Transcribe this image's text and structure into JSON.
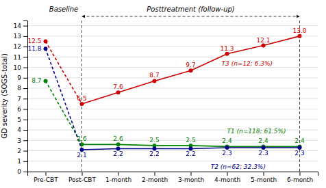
{
  "chart_data": {
    "type": "line",
    "categories": [
      "Pre-CBT",
      "Post-CBT",
      "1-month",
      "2-month",
      "3-month",
      "4-month",
      "5-month",
      "6-month"
    ],
    "series": [
      {
        "name": "T1 (n=118; 61.5%)",
        "color": "#008000",
        "values": [
          8.7,
          2.6,
          2.6,
          2.5,
          2.5,
          2.4,
          2.4,
          2.4
        ]
      },
      {
        "name": "T2 (n=62; 32.3%)",
        "color": "#00008B",
        "values": [
          11.8,
          2.1,
          2.2,
          2.2,
          2.2,
          2.3,
          2.3,
          2.3
        ]
      },
      {
        "name": "T3 (n=12; 6.3%)",
        "color": "#CC0000",
        "values": [
          12.5,
          6.5,
          7.6,
          8.7,
          9.7,
          11.3,
          12.1,
          13.0
        ],
        "value_labels": [
          "12.5",
          "6.5",
          "7.6",
          "8.7",
          "9.7",
          "11.3",
          "12.1",
          "13.0"
        ]
      }
    ],
    "ylabel": "GD severity (SOGS-total)",
    "ylim": [
      0,
      14.5
    ],
    "yticks": [
      0,
      1,
      2,
      3,
      4,
      5,
      6,
      7,
      8,
      9,
      10,
      11,
      12,
      13,
      14
    ],
    "grid": true,
    "data_labels": true,
    "annotations": [
      {
        "text": "Baseline",
        "from": "Pre-CBT",
        "to": "Post-CBT"
      },
      {
        "text": "Posttreatment (follow-up)",
        "from": "Post-CBT",
        "to": "6-month",
        "line_style": "dashed"
      }
    ]
  }
}
